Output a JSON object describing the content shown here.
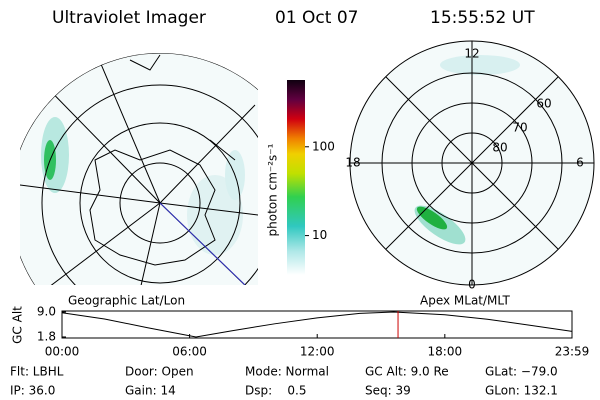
{
  "header": {
    "instrument": "Ultraviolet Imager",
    "date": "01 Oct 07",
    "time": "15:55:52 UT"
  },
  "left_panel": {
    "caption": "Geographic Lat/Lon"
  },
  "right_panel": {
    "caption": "Apex MLat/MLT",
    "mlt_labels": [
      "12",
      "6",
      "0",
      "18"
    ],
    "mlat_labels": [
      "60",
      "70",
      "80"
    ]
  },
  "colorbar": {
    "label": "photon cm⁻²s⁻¹",
    "log": true,
    "clim": [
      3.6,
      565
    ],
    "ticks": [
      10,
      100
    ]
  },
  "altitude_plot": {
    "ylabel": "GC Alt",
    "x": [
      0,
      2,
      4,
      6.3,
      8,
      10,
      12,
      14,
      15.6,
      18,
      20,
      22,
      23.98
    ],
    "values": [
      8.8,
      7.0,
      4.5,
      1.8,
      3.6,
      5.6,
      7.3,
      8.6,
      9.0,
      8.2,
      6.9,
      5.2,
      3.4
    ],
    "color": "#000000",
    "marker_x": 15.8,
    "marker_color": "#cc0000",
    "xlim": [
      0,
      23.98
    ],
    "ylim": [
      1.5,
      9.3
    ],
    "xticks": [
      {
        "value": 0,
        "label": "00:00"
      },
      {
        "value": 6,
        "label": "06:00"
      },
      {
        "value": 12,
        "label": "12:00"
      },
      {
        "value": 18,
        "label": "18:00"
      },
      {
        "value": 23.98,
        "label": "23:59"
      }
    ],
    "yticks": [
      {
        "value": 9,
        "label": "9.0"
      },
      1.8
    ]
  },
  "info": [
    [
      "Flt: LBHL",
      "Door: Open",
      "Mode: Normal",
      "GC Alt: 9.0 Re",
      "GLat: −79.0"
    ],
    [
      "IP: 36.0",
      "Gain: 14",
      "Dsp:    0.5",
      "Seq: 39",
      "GLon: 132.1"
    ]
  ]
}
